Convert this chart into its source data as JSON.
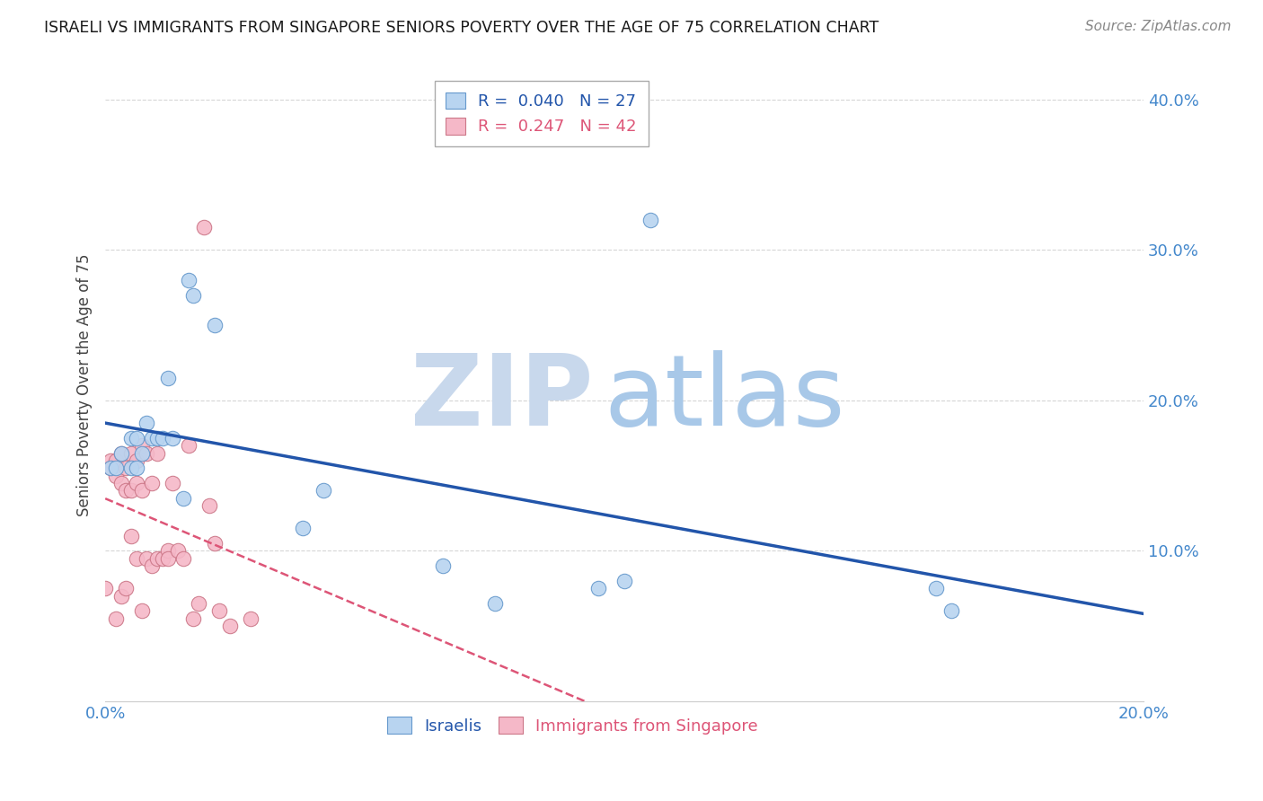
{
  "title": "ISRAELI VS IMMIGRANTS FROM SINGAPORE SENIORS POVERTY OVER THE AGE OF 75 CORRELATION CHART",
  "source": "Source: ZipAtlas.com",
  "ylabel": "Seniors Poverty Over the Age of 75",
  "xlim": [
    0.0,
    0.2
  ],
  "ylim": [
    0.0,
    0.42
  ],
  "xticks": [
    0.0,
    0.05,
    0.1,
    0.15,
    0.2
  ],
  "xtick_labels": [
    "0.0%",
    "",
    "",
    "",
    "20.0%"
  ],
  "yticks": [
    0.1,
    0.2,
    0.3,
    0.4
  ],
  "ytick_labels": [
    "10.0%",
    "20.0%",
    "30.0%",
    "40.0%"
  ],
  "israeli_x": [
    0.001,
    0.002,
    0.003,
    0.005,
    0.005,
    0.006,
    0.006,
    0.007,
    0.008,
    0.009,
    0.01,
    0.011,
    0.012,
    0.013,
    0.015,
    0.016,
    0.017,
    0.021,
    0.038,
    0.042,
    0.065,
    0.075,
    0.095,
    0.1,
    0.105,
    0.16,
    0.163
  ],
  "israeli_y": [
    0.155,
    0.155,
    0.165,
    0.155,
    0.175,
    0.155,
    0.175,
    0.165,
    0.185,
    0.175,
    0.175,
    0.175,
    0.215,
    0.175,
    0.135,
    0.28,
    0.27,
    0.25,
    0.115,
    0.14,
    0.09,
    0.065,
    0.075,
    0.08,
    0.32,
    0.075,
    0.06
  ],
  "singapore_x": [
    0.0,
    0.001,
    0.001,
    0.002,
    0.002,
    0.002,
    0.003,
    0.003,
    0.003,
    0.004,
    0.004,
    0.004,
    0.005,
    0.005,
    0.005,
    0.006,
    0.006,
    0.006,
    0.007,
    0.007,
    0.007,
    0.008,
    0.008,
    0.009,
    0.009,
    0.01,
    0.01,
    0.011,
    0.012,
    0.012,
    0.013,
    0.014,
    0.015,
    0.016,
    0.017,
    0.018,
    0.019,
    0.02,
    0.021,
    0.022,
    0.024,
    0.028
  ],
  "singapore_y": [
    0.075,
    0.16,
    0.155,
    0.16,
    0.15,
    0.055,
    0.165,
    0.145,
    0.07,
    0.155,
    0.14,
    0.075,
    0.165,
    0.14,
    0.11,
    0.16,
    0.145,
    0.095,
    0.17,
    0.14,
    0.06,
    0.165,
    0.095,
    0.145,
    0.09,
    0.165,
    0.095,
    0.095,
    0.1,
    0.095,
    0.145,
    0.1,
    0.095,
    0.17,
    0.055,
    0.065,
    0.315,
    0.13,
    0.105,
    0.06,
    0.05,
    0.055
  ],
  "israeli_R": 0.04,
  "israeli_N": 27,
  "singapore_R": 0.247,
  "singapore_N": 42,
  "israeli_color": "#b8d4f0",
  "israeli_edge_color": "#6699cc",
  "israeli_line_color": "#2255aa",
  "singapore_color": "#f5b8c8",
  "singapore_edge_color": "#cc7788",
  "singapore_line_color": "#dd5577",
  "watermark_zip_color": "#c8d8ec",
  "watermark_atlas_color": "#a8c8e8",
  "background_color": "#ffffff",
  "title_color": "#1a1a1a",
  "axis_label_color": "#444444",
  "tick_color": "#4488cc",
  "grid_color": "#cccccc",
  "source_color": "#888888"
}
